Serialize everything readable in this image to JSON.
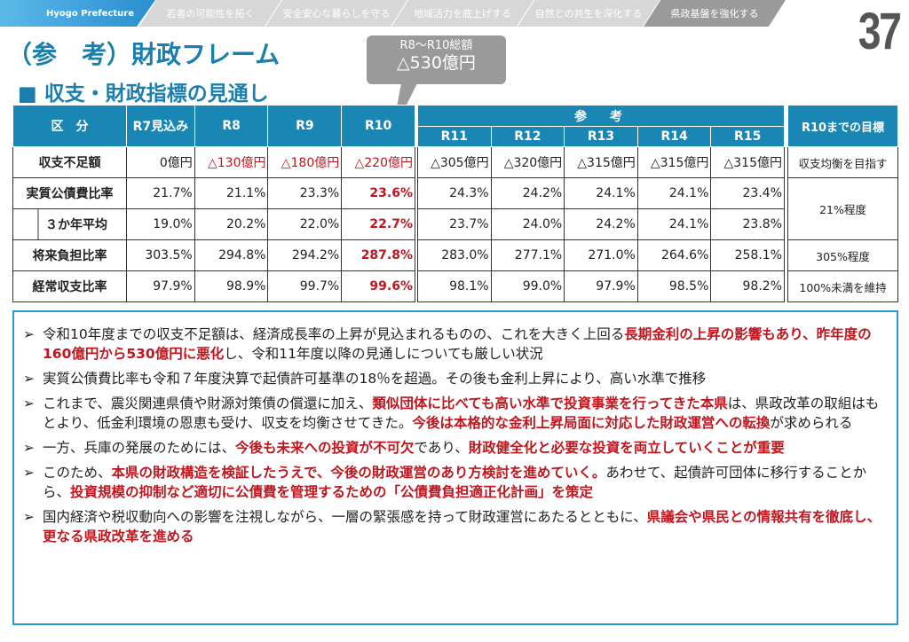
{
  "nav": {
    "brand": "Hyogo Prefecture",
    "tabs": [
      "若者の可能性を拓く",
      "安全安心な暮らしを守る",
      "地域活力を底上げする",
      "自然との共生を深化する",
      "県政基盤を強化する"
    ],
    "active": 4
  },
  "page_number": "37",
  "title": "（参　考）財政フレーム",
  "subtitle": "■ 収支・財政指標の見通し",
  "callout": {
    "line1": "R8～R10総額",
    "line2": "△530億円"
  },
  "table": {
    "header_label": "区　分",
    "main_cols": [
      "R7見込み",
      "R8",
      "R9",
      "R10"
    ],
    "ref_header": "参　考",
    "ref_cols": [
      "R11",
      "R12",
      "R13",
      "R14",
      "R15"
    ],
    "goal_header": "R10までの目標",
    "rows": [
      {
        "label": "収支不足額",
        "main": [
          "0億円",
          "△130億円",
          "△180億円",
          "△220億円"
        ],
        "ref": [
          "△305億円",
          "△320億円",
          "△315億円",
          "△315億円",
          "△315億円"
        ],
        "goal": "収支均衡を目指す"
      },
      {
        "label": "実質公債費比率",
        "main": [
          "21.7%",
          "21.1%",
          "23.3%",
          "23.6%"
        ],
        "ref": [
          "24.3%",
          "24.2%",
          "24.1%",
          "24.1%",
          "23.4%"
        ],
        "goal": "21%程度"
      },
      {
        "label": "３か年平均",
        "main": [
          "19.0%",
          "20.2%",
          "22.0%",
          "22.7%"
        ],
        "ref": [
          "23.7%",
          "24.0%",
          "24.2%",
          "24.1%",
          "23.8%"
        ]
      },
      {
        "label": "将来負担比率",
        "main": [
          "303.5%",
          "294.8%",
          "294.2%",
          "287.8%"
        ],
        "ref": [
          "283.0%",
          "277.1%",
          "271.0%",
          "264.6%",
          "258.1%"
        ],
        "goal": "305%程度"
      },
      {
        "label": "経常収支比率",
        "main": [
          "97.9%",
          "98.9%",
          "99.7%",
          "99.6%"
        ],
        "ref": [
          "98.1%",
          "99.0%",
          "97.9%",
          "98.5%",
          "98.2%"
        ],
        "goal": "100%未満を維持"
      }
    ]
  },
  "notes": [
    [
      {
        "t": "令和10年度までの収支不足額は、経済成長率の上昇が見込まれるものの、これを大きく上回る"
      },
      {
        "t": "長期金利の上昇の影響もあり、昨年度の160億円から530億円に悪化",
        "r": 1
      },
      {
        "t": "し、令和11年度以降の見通しについても厳しい状況"
      }
    ],
    [
      {
        "t": "実質公債費比率も令和７年度決算で起債許可基準の18％を超過。その後も金利上昇により、高い水準で推移"
      }
    ],
    [
      {
        "t": "これまで、震災関連県債や財源対策債の償還に加え、"
      },
      {
        "t": "類似団体に比べても高い水準で投資事業を行ってきた本県",
        "r": 1
      },
      {
        "t": "は、県政改革の取組はもとより、低金利環境の恩恵も受け、収支を均衡させてきた。"
      },
      {
        "t": "今後は本格的な金利上昇局面に対応した財政運営への転換",
        "r": 1
      },
      {
        "t": "が求められる"
      }
    ],
    [
      {
        "t": "一方、兵庫の発展のためには、"
      },
      {
        "t": "今後も未来への投資が不可欠",
        "r": 1
      },
      {
        "t": "であり、"
      },
      {
        "t": "財政健全化と必要な投資を両立していくことが重要",
        "r": 1
      }
    ],
    [
      {
        "t": "このため、"
      },
      {
        "t": "本県の財政構造を検証したうえで、今後の財政運営のあり方検討を進めていく。",
        "r": 1
      },
      {
        "t": "あわせて、起債許可団体に移行することから、"
      },
      {
        "t": "投資規模の抑制など適切に公債費を管理するための「公債費負担適正化計画」を策定",
        "r": 1
      }
    ],
    [
      {
        "t": "国内経済や税収動向への影響を注視しながら、一層の緊張感を持って財政運営にあたるとともに、"
      },
      {
        "t": "県議会や県民との情報共有を徹底し、更なる県政改革を進める",
        "r": 1
      }
    ]
  ],
  "bullet_glyph": "➢"
}
